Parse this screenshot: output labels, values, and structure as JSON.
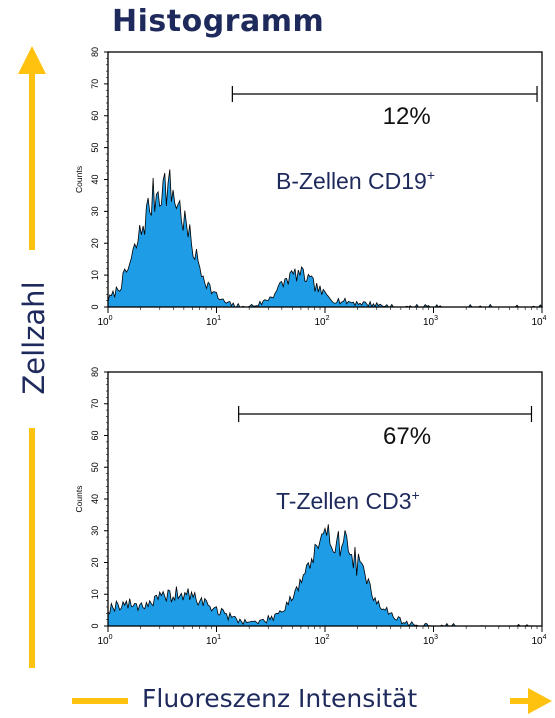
{
  "title": "Histogramm",
  "ylabel": "Zellzahl",
  "xlabel": "Fluoreszenz Intensität",
  "colors": {
    "fill": "#1e9ce6",
    "arrow": "#ffc20e",
    "text_navy": "#1f2a5c",
    "axis": "#000000"
  },
  "chart_data": [
    {
      "type": "area",
      "title": "",
      "panel_label": "B-Zellen CD19",
      "panel_label_sup": "+",
      "ylabel": "Counts",
      "xscale": "log",
      "xlim": [
        1,
        10000
      ],
      "ylim": [
        0,
        80
      ],
      "yticks": [
        0,
        10,
        20,
        30,
        40,
        50,
        60,
        70,
        80
      ],
      "xticks": [
        1,
        10,
        100,
        1000,
        10000
      ],
      "xtick_labels": [
        {
          "base": "10",
          "exp": "0"
        },
        {
          "base": "10",
          "exp": "1"
        },
        {
          "base": "10",
          "exp": "2"
        },
        {
          "base": "10",
          "exp": "3"
        },
        {
          "base": "10",
          "exp": "4"
        }
      ],
      "gate": {
        "from": 14,
        "to": 9000,
        "label": "12%"
      },
      "peaks": [
        {
          "center": 3.3,
          "height": 38,
          "width_decades": 0.22
        },
        {
          "center": 55,
          "height": 10,
          "width_decades": 0.16
        },
        {
          "center": 150,
          "height": 1.5,
          "width_decades": 0.25
        }
      ]
    },
    {
      "type": "area",
      "title": "",
      "panel_label": "T-Zellen CD3",
      "panel_label_sup": "+",
      "ylabel": "Counts",
      "xscale": "log",
      "xlim": [
        1,
        10000
      ],
      "ylim": [
        0,
        80
      ],
      "yticks": [
        0,
        10,
        20,
        30,
        40,
        50,
        60,
        70,
        80
      ],
      "xticks": [
        1,
        10,
        100,
        1000,
        10000
      ],
      "xtick_labels": [
        {
          "base": "10",
          "exp": "0"
        },
        {
          "base": "10",
          "exp": "1"
        },
        {
          "base": "10",
          "exp": "2"
        },
        {
          "base": "10",
          "exp": "3"
        },
        {
          "base": "10",
          "exp": "4"
        }
      ],
      "gate": {
        "from": 16,
        "to": 8000,
        "label": "67%"
      },
      "peaks": [
        {
          "center": 1.2,
          "height": 5,
          "width_decades": 0.15
        },
        {
          "center": 4.5,
          "height": 10,
          "width_decades": 0.3
        },
        {
          "center": 120,
          "height": 28,
          "width_decades": 0.26
        }
      ]
    }
  ]
}
